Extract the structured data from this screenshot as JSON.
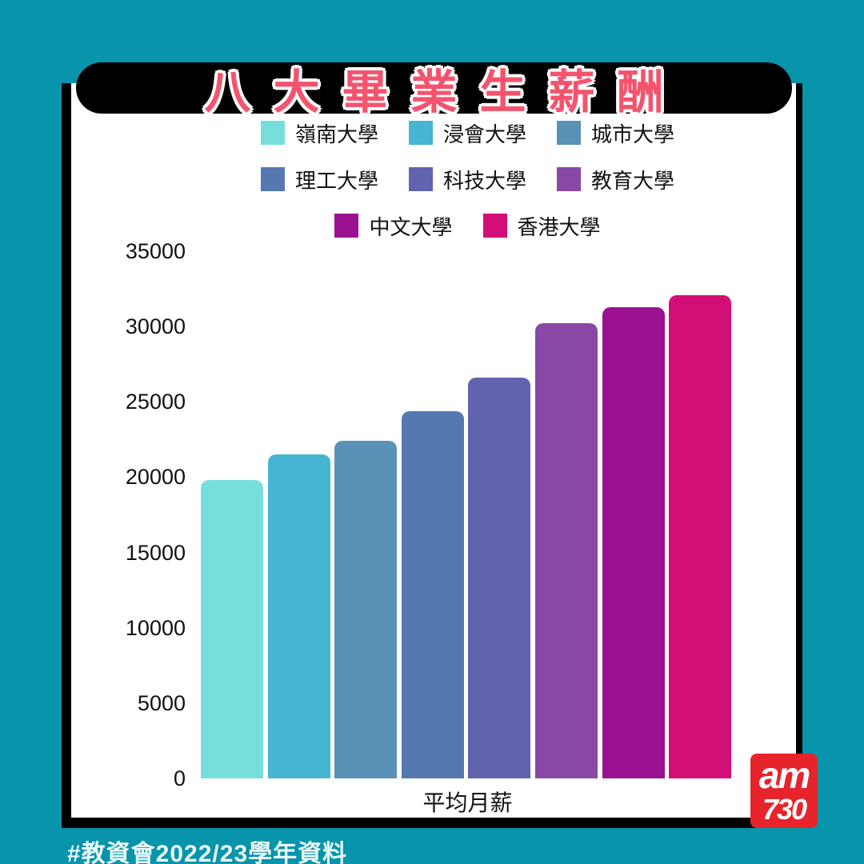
{
  "page": {
    "title": "八大畢業生薪酬",
    "source_note": "#教資會2022/23學年資料",
    "logo": {
      "line1": "am",
      "line2": "730"
    }
  },
  "colors": {
    "background_teal": "#0894AA",
    "title_bar_black": "#000000",
    "title_pink": "#F4536E",
    "card_white": "#FFFFFF",
    "card_border_black": "#000000",
    "logo_red": "#E7242B",
    "hashtag_text": "#E9F8F9"
  },
  "chart_data": {
    "type": "bar",
    "title": "八大畢業生薪酬",
    "categories": [
      "嶺南大學",
      "浸會大學",
      "城市大學",
      "理工大學",
      "科技大學",
      "教育大學",
      "中文大學",
      "香港大學"
    ],
    "values": [
      19800,
      21500,
      22400,
      24400,
      26600,
      30200,
      31300,
      32100
    ],
    "bar_colors": [
      "#76DFDC",
      "#45B5D3",
      "#5A92B7",
      "#5578B1",
      "#6163AE",
      "#8A48A6",
      "#9C1192",
      "#D30E76"
    ],
    "xlabel": "平均月薪",
    "ylabel": "",
    "ylim": [
      0,
      35000
    ],
    "yticks": [
      35000,
      30000,
      25000,
      20000,
      15000,
      10000,
      5000,
      0
    ],
    "grid": false,
    "legend_position": "top",
    "legend_rows": [
      [
        0,
        1,
        2
      ],
      [
        3,
        4,
        5
      ],
      [
        6,
        7
      ]
    ]
  }
}
